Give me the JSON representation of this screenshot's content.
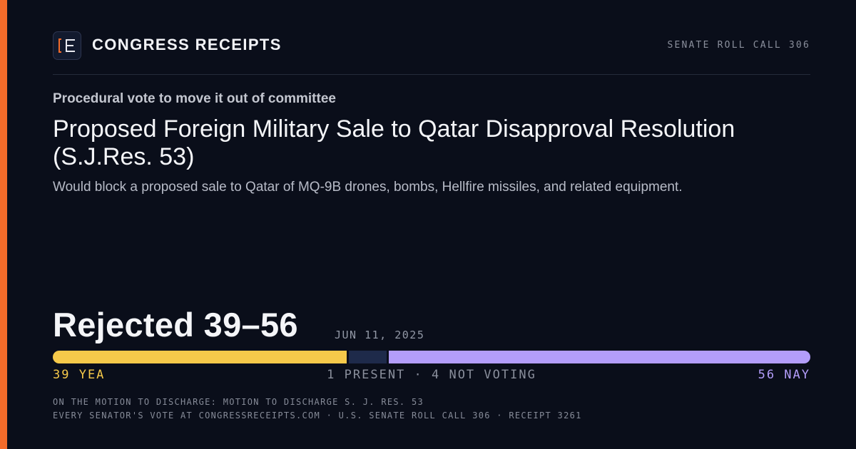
{
  "header": {
    "brand": "CONGRESS RECEIPTS",
    "roll_call": "SENATE ROLL CALL 306"
  },
  "kicker": "Procedural vote to move it out of committee",
  "title": "Proposed Foreign Military Sale to Qatar Disapproval Resolution (S.J.Res. 53)",
  "description": "Would block a proposed sale to Qatar of MQ-9B drones, bombs, Hellfire missiles, and related equipment.",
  "result": {
    "headline": "Rejected 39–56",
    "date": "JUN 11, 2025"
  },
  "vote": {
    "yea": {
      "value": 39,
      "label": "39 YEA",
      "color": "#f6c94a"
    },
    "present": {
      "value": 1,
      "color": "#1e2a4a"
    },
    "not_voting": {
      "value": 4,
      "color": "#1e2a4a"
    },
    "other_label": "1 PRESENT · 4 NOT VOTING",
    "nay": {
      "value": 56,
      "label": "56 NAY",
      "color": "#b39dfa"
    }
  },
  "footer": {
    "motion": "ON THE MOTION TO DISCHARGE: MOTION TO DISCHARGE S. J. RES. 53",
    "credit": "EVERY SENATOR'S VOTE AT CONGRESSRECEIPTS.COM · U.S. SENATE ROLL CALL 306 · RECEIPT 3261"
  }
}
